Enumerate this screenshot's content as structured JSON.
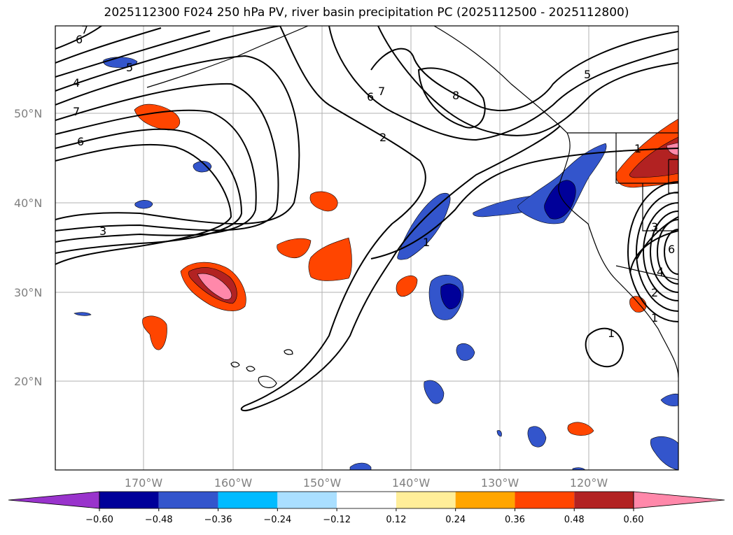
{
  "title": "2025112300 F024 250 hPa PV, river basin precipitation PC (2025112500 - 2025112800)",
  "lat_labels": [
    "50°N",
    "40°N",
    "30°N",
    "20°N"
  ],
  "lon_labels": [
    "170°W",
    "160°W",
    "150°W",
    "140°W",
    "130°W",
    "120°W"
  ],
  "contour_labels": [
    "7",
    "6",
    "5",
    "4",
    "7",
    "6",
    "3",
    "7",
    "6",
    "8",
    "2",
    "5",
    "1",
    "1",
    "3",
    "6",
    "4",
    "2",
    "1",
    "1"
  ],
  "colorbar": {
    "colors": [
      "#9933cc",
      "#000099",
      "#3355cc",
      "#00bbff",
      "#aadfff",
      "#ffffff",
      "#ffee99",
      "#ffa500",
      "#ff4500",
      "#b22222",
      "#ff88aa"
    ],
    "ticks": [
      "−0.60",
      "−0.48",
      "−0.36",
      "−0.24",
      "−0.12",
      "0.12",
      "0.24",
      "0.36",
      "0.48",
      "0.60"
    ]
  }
}
